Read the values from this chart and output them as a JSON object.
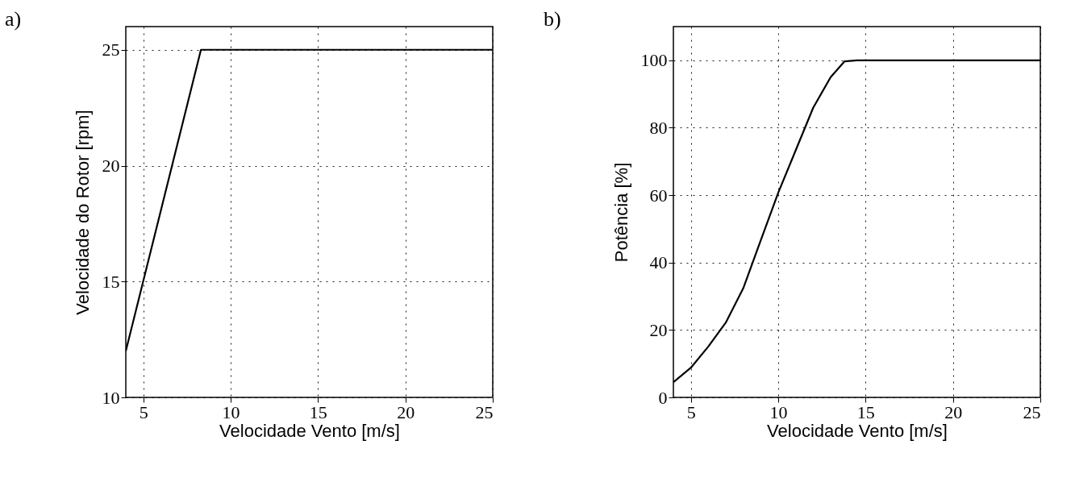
{
  "chart_data": [
    {
      "type": "line",
      "title": "a)",
      "xlabel": "Velocidade Vento [m/s]",
      "ylabel": "Velocidade do Rotor [rpm]",
      "x": [
        4,
        8.3,
        25
      ],
      "series": [
        {
          "color": "#000000",
          "values": [
            12,
            25,
            25
          ]
        }
      ],
      "xlim": [
        4,
        25
      ],
      "xticks": [
        5,
        10,
        15,
        20,
        25
      ],
      "ylim": [
        10,
        26
      ],
      "yticks": [
        10,
        15,
        20,
        25
      ],
      "grid": true,
      "legend": false,
      "marker": "none",
      "line_style": "solid"
    },
    {
      "type": "line",
      "title": "b)",
      "xlabel": "Velocidade Vento [m/s]",
      "ylabel": "Potência [%]",
      "x": [
        4,
        5,
        6,
        7,
        8,
        9,
        10,
        11,
        12,
        13,
        13.8,
        14.5,
        25
      ],
      "series": [
        {
          "color": "#000000",
          "values": [
            4.5,
            8.8,
            15.1,
            22.2,
            32.4,
            46.6,
            60.7,
            73.3,
            85.9,
            95,
            99.7,
            100,
            100
          ]
        }
      ],
      "xlim": [
        4,
        25
      ],
      "xticks": [
        5,
        10,
        15,
        20,
        25
      ],
      "ylim": [
        0,
        110
      ],
      "yticks": [
        0,
        20,
        40,
        60,
        80,
        100
      ],
      "grid": true,
      "legend": false,
      "marker": "none",
      "line_style": "solid"
    }
  ]
}
